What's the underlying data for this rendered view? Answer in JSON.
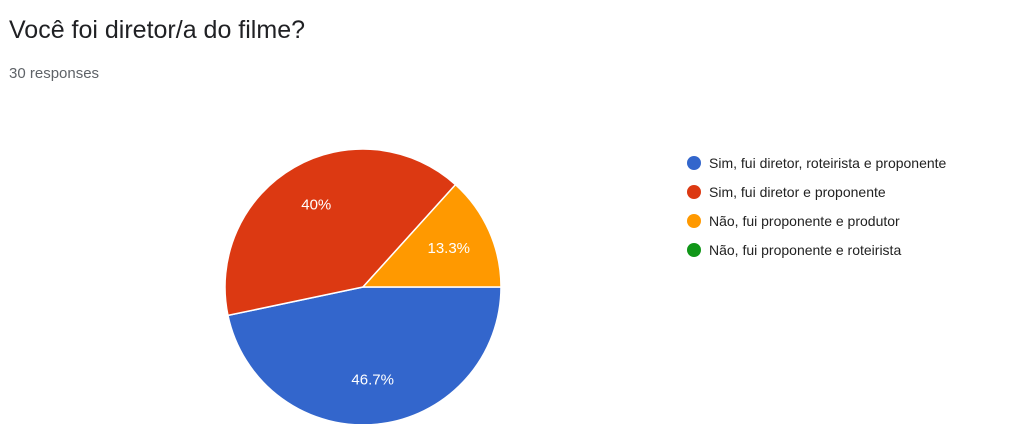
{
  "header": {
    "title": "Você foi diretor/a do filme?",
    "responses": "30 responses"
  },
  "chart_data": {
    "type": "pie",
    "title": "Você foi diretor/a do filme?",
    "subtitle": "30 responses",
    "legend_position": "right",
    "slices": [
      {
        "name": "Sim, fui diretor, roteirista e proponente",
        "value": 46.7,
        "label": "46.7%",
        "color": "#3366cc"
      },
      {
        "name": "Sim, fui diretor e proponente",
        "value": 40,
        "label": "40%",
        "color": "#dc3912"
      },
      {
        "name": "Não, fui proponente e produtor",
        "value": 13.3,
        "label": "13.3%",
        "color": "#ff9900"
      },
      {
        "name": "Não, fui proponente e roteirista",
        "value": 0,
        "label": "",
        "color": "#109618"
      }
    ]
  }
}
